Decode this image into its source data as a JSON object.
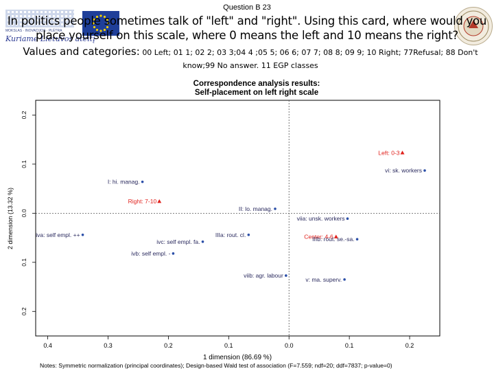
{
  "header": {
    "question": "Question B 23",
    "prompt": "In politics people sometimes talk of \"left\" and \"right\". Using this card, where would you place yourself on this scale, where 0 means the left and 10 means the right?",
    "values_lead": "Values and categories:",
    "values_detail": "00 Left; 01 1; 02 2; 03 3;04 4 ;05 5; 06 6; 07 7; 08 8; 09 9; 10 Right; 77Refusal; 88 Don't know;99 No answer. 11 EGP classes",
    "logo_caption": "MOKSLAS · INOVACIJOS · PLĖTRA",
    "logo_script": "Kuriame Lietuvos ateitį"
  },
  "chart_data": {
    "type": "scatter",
    "title": "Correspondence analysis results:",
    "subtitle": "Self-placement on left right scale",
    "xlabel": "1 dimension (86.69 %)",
    "ylabel": "2 dimension (13.32 %)",
    "xlim": [
      -0.42,
      0.25
    ],
    "ylim": [
      -0.25,
      0.23
    ],
    "x_ticks": [
      -0.4,
      -0.3,
      -0.2,
      -0.1,
      0.0,
      0.1,
      0.2
    ],
    "x_tick_labels": [
      "0.4",
      "0.3",
      "0.2",
      "0.1",
      "0.0",
      "0.1",
      "0.2"
    ],
    "y_ticks": [
      -0.2,
      -0.1,
      0.0,
      0.1,
      0.2
    ],
    "y_tick_labels": [
      "0.2",
      "0.1",
      "0.0",
      "0.1",
      "0.2"
    ],
    "note": "Notes: Symmetric normalization (principal coordinates); Design-based Wald test of association (F=7.559; ndf=20; ddf=7837; p-value=0)",
    "series": [
      {
        "name": "Self-placement",
        "color": "#e0201b",
        "marker": "triangle",
        "points": [
          {
            "label": "Left: 0-3",
            "x": 0.188,
            "y": 0.123
          },
          {
            "label": "Center: 4-6",
            "x": 0.078,
            "y": -0.048
          },
          {
            "label": "Right: 7-10",
            "x": -0.215,
            "y": 0.024
          }
        ]
      },
      {
        "name": "EGP classes",
        "color": "#2b4fa8",
        "marker": "circle",
        "points": [
          {
            "label": "I: hi. manag.",
            "x": -0.243,
            "y": 0.064
          },
          {
            "label": "II: lo. manag.",
            "x": -0.023,
            "y": 0.009
          },
          {
            "label": "IIIa: rout. cl.",
            "x": -0.067,
            "y": -0.044
          },
          {
            "label": "IIIb: rout. se.-sa.",
            "x": 0.113,
            "y": -0.053
          },
          {
            "label": "iva: self empl. ++",
            "x": -0.342,
            "y": -0.044
          },
          {
            "label": "ivb: self empl. -",
            "x": -0.192,
            "y": -0.082
          },
          {
            "label": "ivc: self empl. fa.",
            "x": -0.143,
            "y": -0.058
          },
          {
            "label": "v: ma. superv.",
            "x": 0.092,
            "y": -0.135
          },
          {
            "label": "vi: sk. workers",
            "x": 0.225,
            "y": 0.087
          },
          {
            "label": "viia: unsk. workers",
            "x": 0.097,
            "y": -0.011
          },
          {
            "label": "viib: agr. labour",
            "x": -0.005,
            "y": -0.127
          }
        ]
      }
    ]
  }
}
